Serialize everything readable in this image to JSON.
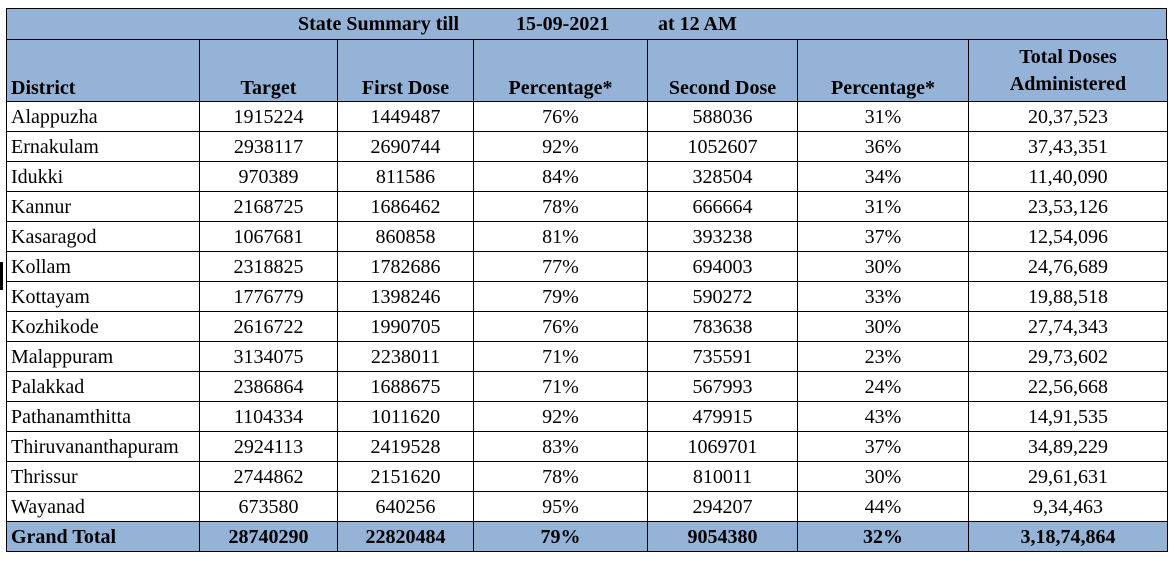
{
  "title": {
    "label": "State Summary till",
    "date": "15-09-2021",
    "time": "at 12 AM"
  },
  "headers": {
    "district": "District",
    "target": "Target",
    "first_dose": "First Dose",
    "percentage1": "Percentage*",
    "second_dose": "Second Dose",
    "percentage2": "Percentage*",
    "total_line1": "Total Doses",
    "total_line2": "Administered"
  },
  "rows": [
    {
      "district": "Alappuzha",
      "target": "1915224",
      "first": "1449487",
      "p1": "76%",
      "second": "588036",
      "p2": "31%",
      "total": "20,37,523"
    },
    {
      "district": "Ernakulam",
      "target": "2938117",
      "first": "2690744",
      "p1": "92%",
      "second": "1052607",
      "p2": "36%",
      "total": "37,43,351"
    },
    {
      "district": "Idukki",
      "target": "970389",
      "first": "811586",
      "p1": "84%",
      "second": "328504",
      "p2": "34%",
      "total": "11,40,090"
    },
    {
      "district": "Kannur",
      "target": "2168725",
      "first": "1686462",
      "p1": "78%",
      "second": "666664",
      "p2": "31%",
      "total": "23,53,126"
    },
    {
      "district": "Kasaragod",
      "target": "1067681",
      "first": "860858",
      "p1": "81%",
      "second": "393238",
      "p2": "37%",
      "total": "12,54,096"
    },
    {
      "district": "Kollam",
      "target": "2318825",
      "first": "1782686",
      "p1": "77%",
      "second": "694003",
      "p2": "30%",
      "total": "24,76,689"
    },
    {
      "district": "Kottayam",
      "target": "1776779",
      "first": "1398246",
      "p1": "79%",
      "second": "590272",
      "p2": "33%",
      "total": "19,88,518"
    },
    {
      "district": "Kozhikode",
      "target": "2616722",
      "first": "1990705",
      "p1": "76%",
      "second": "783638",
      "p2": "30%",
      "total": "27,74,343"
    },
    {
      "district": "Malappuram",
      "target": "3134075",
      "first": "2238011",
      "p1": "71%",
      "second": "735591",
      "p2": "23%",
      "total": "29,73,602"
    },
    {
      "district": "Palakkad",
      "target": "2386864",
      "first": "1688675",
      "p1": "71%",
      "second": "567993",
      "p2": "24%",
      "total": "22,56,668"
    },
    {
      "district": "Pathanamthitta",
      "target": "1104334",
      "first": "1011620",
      "p1": "92%",
      "second": "479915",
      "p2": "43%",
      "total": "14,91,535"
    },
    {
      "district": "Thiruvananthapuram",
      "target": "2924113",
      "first": "2419528",
      "p1": "83%",
      "second": "1069701",
      "p2": "37%",
      "total": "34,89,229"
    },
    {
      "district": "Thrissur",
      "target": "2744862",
      "first": "2151620",
      "p1": "78%",
      "second": "810011",
      "p2": "30%",
      "total": "29,61,631"
    },
    {
      "district": "Wayanad",
      "target": "673580",
      "first": "640256",
      "p1": "95%",
      "second": "294207",
      "p2": "44%",
      "total": "9,34,463"
    }
  ],
  "grand_total": {
    "district": "Grand Total",
    "target": "28740290",
    "first": "22820484",
    "p1": "79%",
    "second": "9054380",
    "p2": "32%",
    "total": "3,18,74,864"
  },
  "colors": {
    "header_fill": "#95b3d7",
    "border": "#000000"
  }
}
